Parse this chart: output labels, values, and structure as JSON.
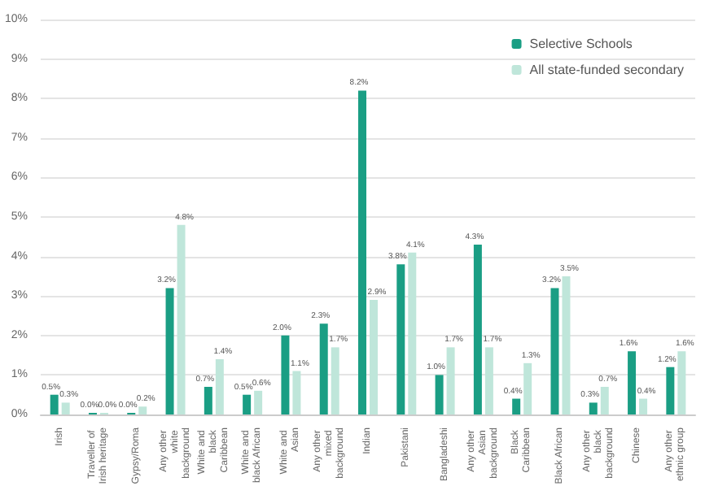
{
  "chart_data": {
    "type": "bar",
    "categories": [
      "Irish",
      "Traveller of Irish heritage",
      "Gypsy/Roma",
      "Any other white background",
      "White and black Caribbean",
      "White and black African",
      "White and Asian",
      "Any other mixed background",
      "Indian",
      "Pakistani",
      "Bangladeshi",
      "Any other Asian background",
      "Black Caribbean",
      "Black African",
      "Any other black background",
      "Chinese",
      "Any other ethnic group"
    ],
    "series": [
      {
        "name": "Selective Schools",
        "color": "#1a9e84",
        "values": [
          0.5,
          0.0,
          0.0,
          3.2,
          0.7,
          0.5,
          2.0,
          2.3,
          8.2,
          3.8,
          1.0,
          4.3,
          0.4,
          3.2,
          0.3,
          1.6,
          1.2
        ],
        "value_labels": [
          "0.5%",
          "0.0%",
          "0.0%",
          "3.2%",
          "0.7%",
          "0.5%",
          "2.0%",
          "2.3%",
          "8.2%",
          "3.8%",
          "1.0%",
          "4.3%",
          "0.4%",
          "3.2%",
          "0.3%",
          "1.6%",
          "1.2%"
        ]
      },
      {
        "name": "All state-funded secondary",
        "color": "#bfe6da",
        "values": [
          0.3,
          0.0,
          0.2,
          4.8,
          1.4,
          0.6,
          1.1,
          1.7,
          2.9,
          4.1,
          1.7,
          1.7,
          1.3,
          3.5,
          0.7,
          0.4,
          1.6
        ],
        "value_labels": [
          "0.3%",
          "0.0%",
          "0.2%",
          "4.8%",
          "1.4%",
          "0.6%",
          "1.1%",
          "1.7%",
          "2.9%",
          "4.1%",
          "1.7%",
          "1.7%",
          "1.3%",
          "3.5%",
          "0.7%",
          "0.4%",
          "1.6%"
        ]
      }
    ],
    "ylim": [
      0,
      10
    ],
    "yticks": [
      {
        "value": 0,
        "label": "0%"
      },
      {
        "value": 1,
        "label": "1%"
      },
      {
        "value": 2,
        "label": "2%"
      },
      {
        "value": 3,
        "label": "3%"
      },
      {
        "value": 4,
        "label": "4%"
      },
      {
        "value": 5,
        "label": "5%"
      },
      {
        "value": 6,
        "label": "6%"
      },
      {
        "value": 7,
        "label": "7%"
      },
      {
        "value": 8,
        "label": "8%"
      },
      {
        "value": 9,
        "label": "9%"
      },
      {
        "value": 10,
        "label": "10%"
      }
    ],
    "grid": "y",
    "legend": "top right"
  }
}
